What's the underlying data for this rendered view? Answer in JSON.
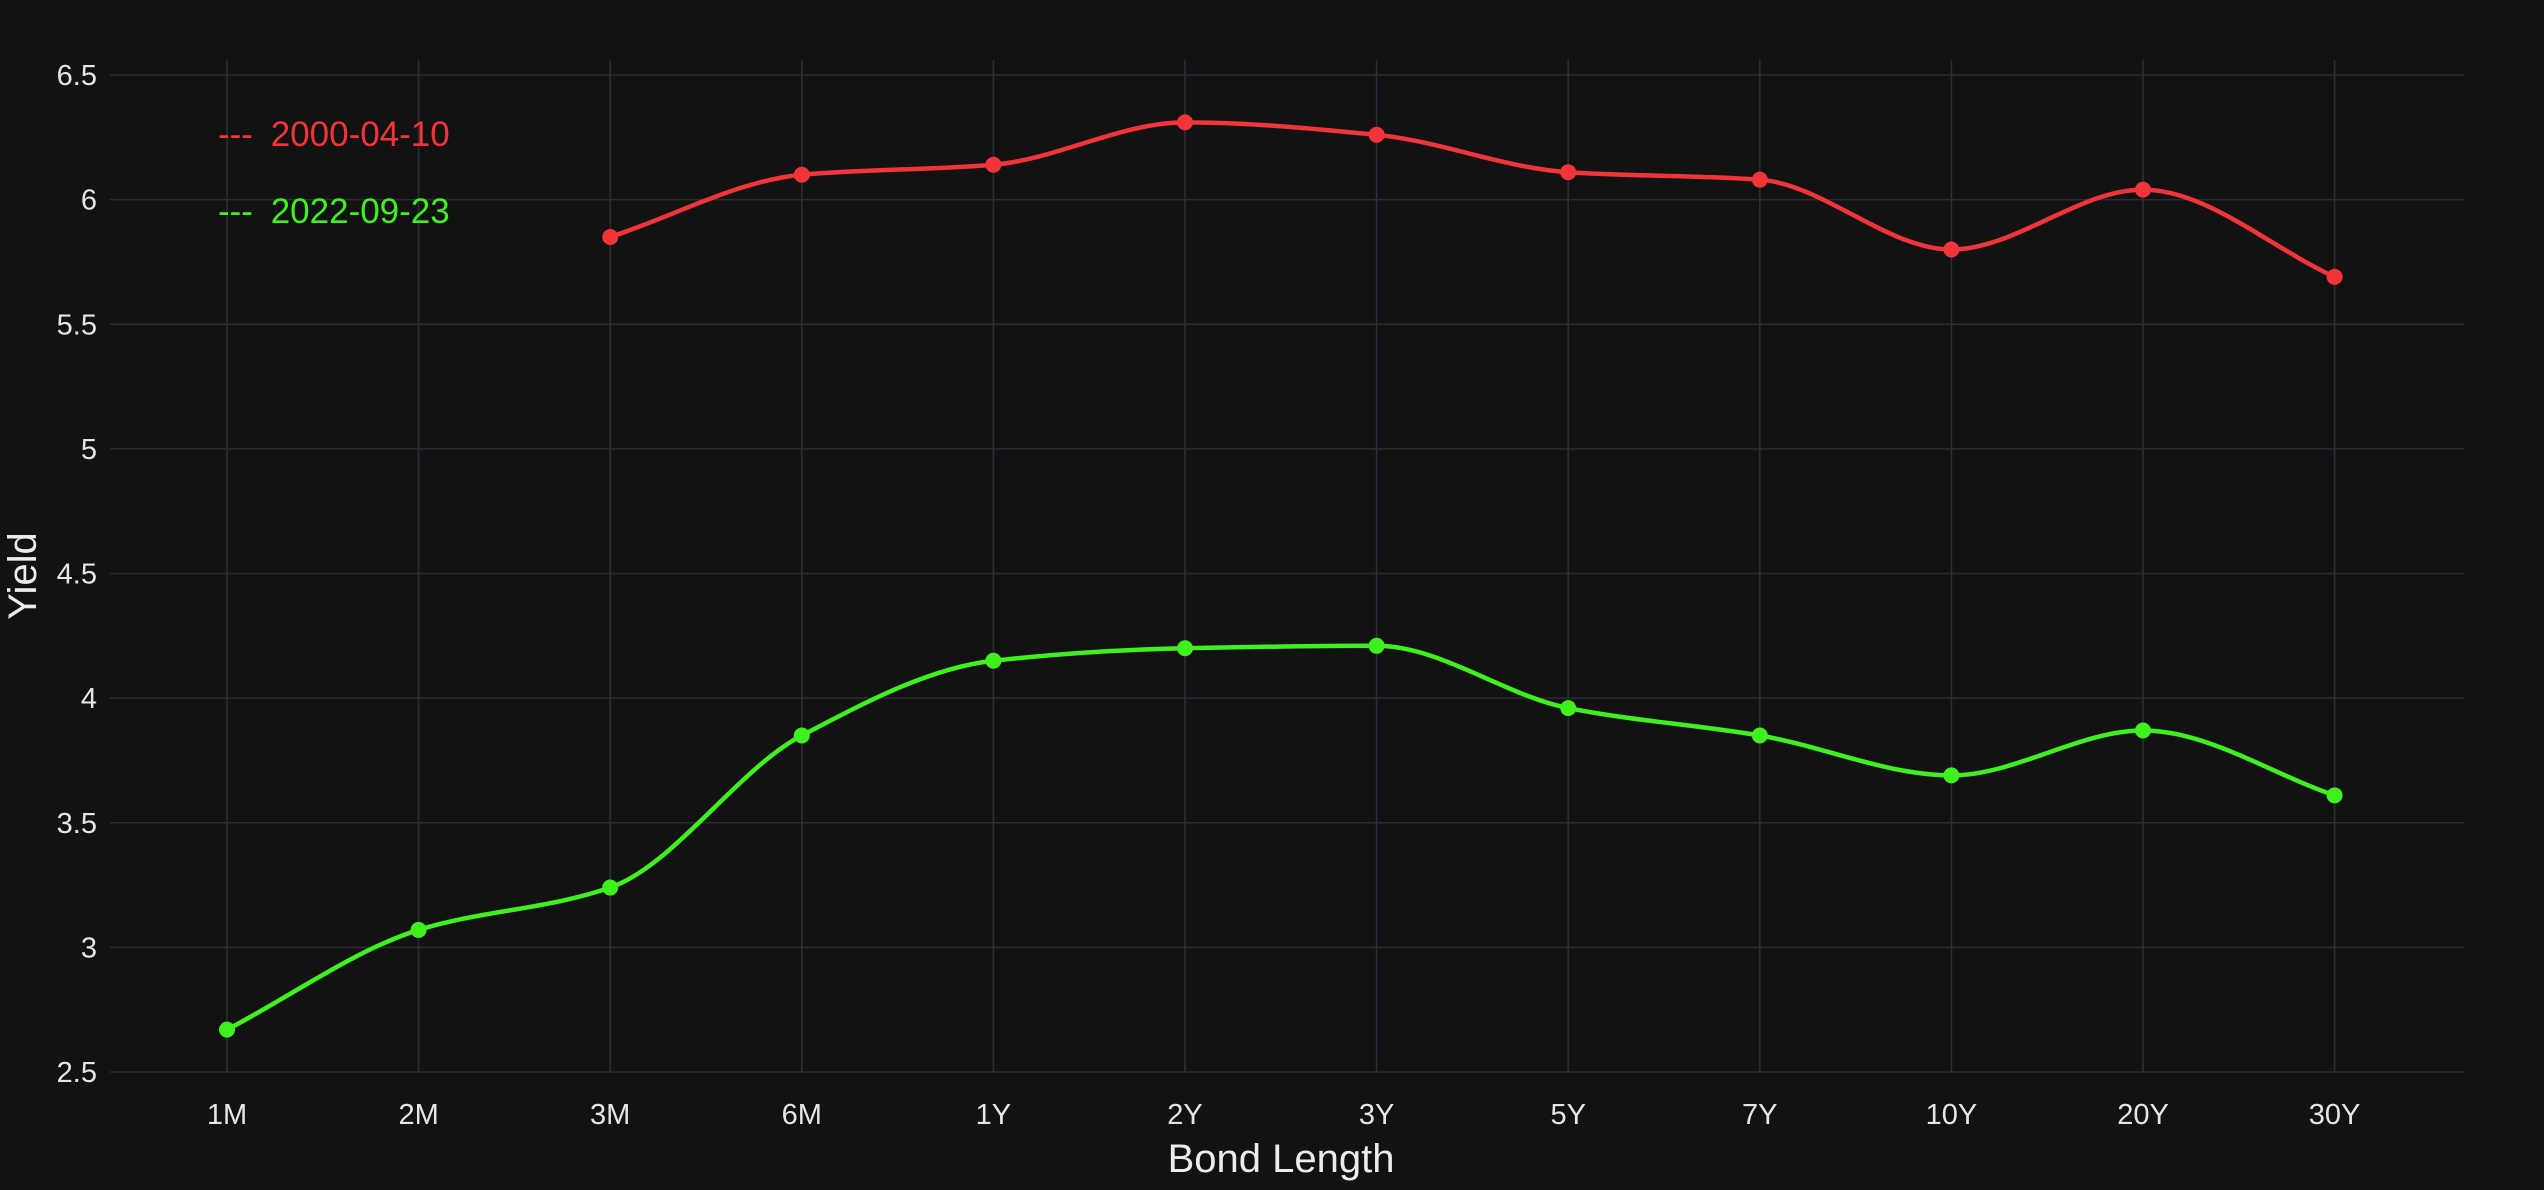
{
  "chart_data": {
    "type": "line",
    "categories": [
      "1M",
      "2M",
      "3M",
      "6M",
      "1Y",
      "2Y",
      "3Y",
      "5Y",
      "7Y",
      "10Y",
      "20Y",
      "30Y"
    ],
    "series": [
      {
        "name": "2000-04-10",
        "color": "#f0343a",
        "values": [
          null,
          null,
          5.85,
          6.1,
          6.14,
          6.31,
          6.26,
          6.11,
          6.08,
          5.8,
          6.04,
          5.69
        ]
      },
      {
        "name": "2022-09-23",
        "color": "#3ff01f",
        "values": [
          2.67,
          3.07,
          3.24,
          3.85,
          4.15,
          4.2,
          4.21,
          3.96,
          3.85,
          3.69,
          3.87,
          3.61
        ]
      }
    ],
    "xlabel": "Bond Length",
    "ylabel": "Yield",
    "ylim": [
      2.5,
      6.5
    ],
    "yticks": [
      2.5,
      3,
      3.5,
      4,
      4.5,
      5,
      5.5,
      6,
      6.5
    ],
    "ytick_labels": [
      "2.5",
      "3",
      "3.5",
      "4",
      "4.5",
      "5",
      "5.5",
      "6",
      "6.5"
    ],
    "grid": true,
    "legend_position": "top-left",
    "legend_marker": "---",
    "background": "#121213",
    "grid_color": "#2a2d34",
    "text_color": "#e6e6e6"
  }
}
